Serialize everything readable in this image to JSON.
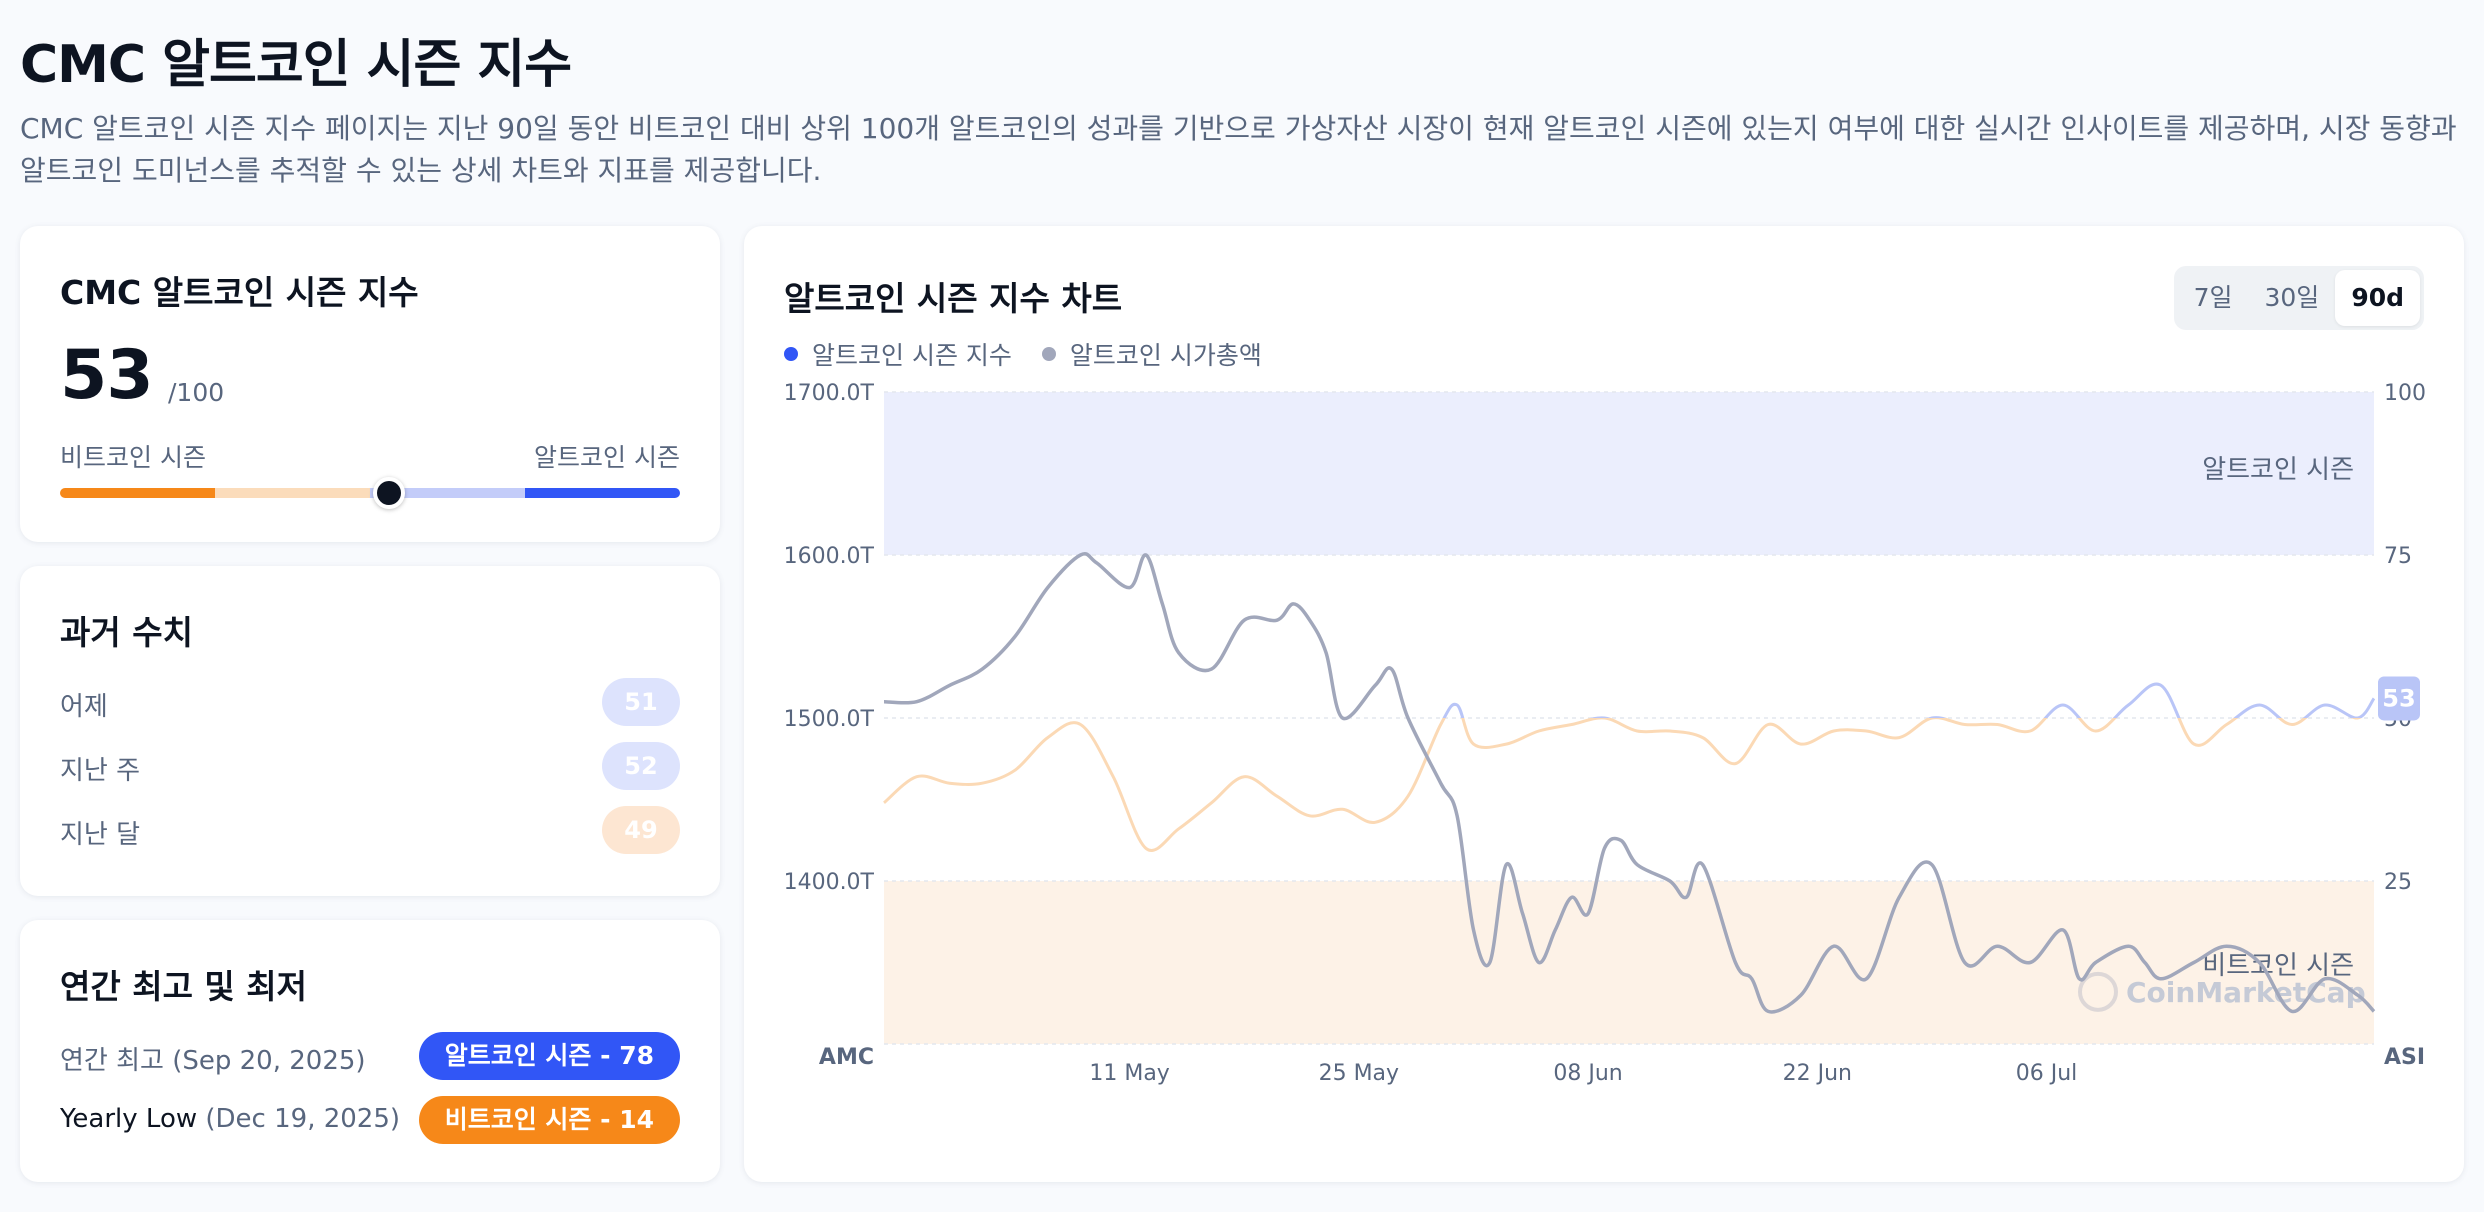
{
  "page": {
    "title": "CMC 알트코인 시즌 지수",
    "description": "CMC 알트코인 시즌 지수 페이지는 지난 90일 동안 비트코인 대비 상위 100개 알트코인의 성과를 기반으로 가상자산 시장이 현재 알트코인 시즌에 있는지 여부에 대한 실시간 인사이트를 제공하며, 시장 동향과 알트코인 도미넌스를 추적할 수 있는 상세 차트와 지표를 제공합니다."
  },
  "index_card": {
    "title": "CMC 알트코인 시즌 지수",
    "value": "53",
    "max": "/100",
    "level": 0.53,
    "left_label": "비트코인 시즌",
    "right_label": "알트코인 시즌",
    "bar_colors": [
      "#f68819",
      "#fbdcbb",
      "#c3ccf9",
      "#3156f6"
    ]
  },
  "history_card": {
    "title": "과거 수치",
    "rows": [
      {
        "label": "어제",
        "value": "51",
        "color": "#dde3fd"
      },
      {
        "label": "지난 주",
        "value": "52",
        "color": "#dde3fd"
      },
      {
        "label": "지난 달",
        "value": "49",
        "color": "#fde6d2"
      }
    ]
  },
  "yearly_card": {
    "title": "연간 최고 및 최저",
    "high_label": "연간 최고",
    "high_date": "(Sep 20, 2025)",
    "high_value": "알트코인 시즌 - 78",
    "high_color": "#3156f6",
    "low_label": "Yearly Low",
    "low_date": "(Dec 19, 2025)",
    "low_value": "비트코인 시즌 - 14",
    "low_color": "#f68819"
  },
  "chart_card": {
    "title": "알트코인 시즌 지수 차트",
    "tabs": [
      "7일",
      "30일",
      "90d"
    ],
    "active_tab": "90d",
    "legend": [
      {
        "name": "알트코인 시즌 지수",
        "color": "#3156f6"
      },
      {
        "name": "알트코인 시가총액",
        "color": "#a1a7bb"
      }
    ],
    "zone_top_label": "알트코인 시즌",
    "zone_bottom_label": "비트코인 시즌",
    "current_value_badge": "53",
    "watermark": "CoinMarketCap"
  },
  "chart_data": {
    "type": "line",
    "left_axis": {
      "title": "AMC",
      "ticks": [
        "1700.0T",
        "1600.0T",
        "1500.0T",
        "1400.0T"
      ],
      "values": [
        1700,
        1600,
        1500,
        1400
      ],
      "range": [
        1300,
        1700
      ]
    },
    "right_axis": {
      "title": "ASI",
      "ticks": [
        "100",
        "75",
        "50",
        "25"
      ],
      "values": [
        100,
        75,
        50,
        25
      ],
      "range": [
        0,
        100
      ]
    },
    "x_ticks": [
      "11 May",
      "25 May",
      "08 Jun",
      "22 Jun",
      "06 Jul"
    ],
    "x_tick_positions": [
      15,
      29,
      43,
      57,
      71
    ],
    "x_range": [
      0,
      91
    ],
    "zones": [
      {
        "name": "알트코인 시즌",
        "from": 75,
        "to": 100,
        "color": "#ebeefd"
      },
      {
        "name": "비트코인 시즌",
        "from": 0,
        "to": 25,
        "color": "#fdf2e7"
      }
    ],
    "grid": true,
    "series": [
      {
        "name": "알트코인 시즌 지수",
        "axis": "right",
        "x": [
          0,
          2,
          4,
          6,
          8,
          10,
          12,
          14,
          16,
          18,
          20,
          22,
          24,
          26,
          28,
          30,
          32,
          34,
          35,
          36,
          38,
          40,
          42,
          44,
          46,
          48,
          50,
          52,
          54,
          56,
          58,
          60,
          62,
          64,
          66,
          68,
          70,
          72,
          74,
          76,
          78,
          80,
          82,
          84,
          86,
          88,
          90,
          91
        ],
        "y": [
          37,
          41,
          40,
          40,
          42,
          47,
          49,
          41,
          30,
          33,
          37,
          41,
          38,
          35,
          36,
          34,
          38,
          49,
          52,
          46,
          46,
          48,
          49,
          50,
          48,
          48,
          47,
          43,
          49,
          46,
          48,
          48,
          47,
          50,
          49,
          49,
          48,
          52,
          48,
          52,
          55,
          46,
          49,
          52,
          49,
          52,
          50,
          53
        ],
        "colors": {
          "above": "#b9c5f7",
          "below": "#fbd9b5"
        }
      },
      {
        "name": "알트코인 시가총액",
        "axis": "left",
        "x": [
          0,
          2,
          4,
          6,
          8,
          10,
          12,
          13,
          15,
          16,
          17,
          18,
          20,
          22,
          24,
          25,
          26,
          27,
          28,
          30,
          31,
          32,
          34,
          35,
          36,
          37,
          38,
          39,
          40,
          41,
          42,
          43,
          44,
          45,
          46,
          48,
          49,
          50,
          52,
          53,
          54,
          56,
          58,
          60,
          62,
          64,
          66,
          68,
          70,
          72,
          73,
          74,
          76,
          77,
          78,
          80,
          82,
          84,
          86,
          88,
          90,
          91
        ],
        "y": [
          1510,
          1510,
          1520,
          1530,
          1550,
          1580,
          1600,
          1595,
          1580,
          1600,
          1570,
          1540,
          1530,
          1560,
          1560,
          1570,
          1560,
          1540,
          1500,
          1520,
          1530,
          1500,
          1460,
          1440,
          1370,
          1350,
          1410,
          1380,
          1350,
          1370,
          1390,
          1380,
          1420,
          1425,
          1410,
          1400,
          1390,
          1410,
          1350,
          1340,
          1320,
          1330,
          1360,
          1340,
          1390,
          1410,
          1350,
          1360,
          1350,
          1370,
          1340,
          1350,
          1360,
          1350,
          1340,
          1350,
          1360,
          1350,
          1320,
          1340,
          1330,
          1320
        ]
      }
    ]
  }
}
